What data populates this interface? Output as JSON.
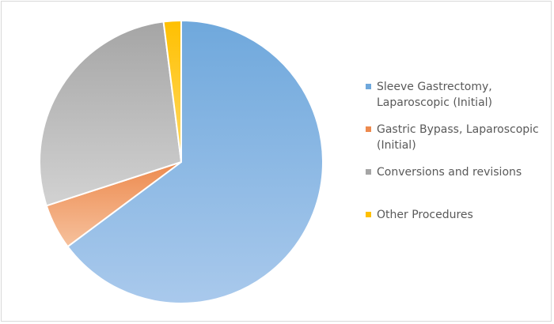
{
  "chart_data": {
    "type": "pie",
    "title": "",
    "legend_position": "right",
    "start_angle_deg": 0,
    "direction": "clockwise",
    "slices": [
      {
        "label": "Sleeve Gastrectomy, Laparoscopic (Initial)",
        "value": 64.8,
        "color": "#6fa8dc",
        "color_light": "#a9c9ec"
      },
      {
        "label": "Gastric Bypass, Laparoscopic (Initial)",
        "value": 5.2,
        "color": "#ed8a4e",
        "color_light": "#f6c19d"
      },
      {
        "label": "Conversions and revisions",
        "value": 28.0,
        "color": "#a5a5a5",
        "color_light": "#d2d2d2"
      },
      {
        "label": "Other Procedures",
        "value": 2.0,
        "color": "#ffc000",
        "color_light": "#ffd966"
      }
    ],
    "legend_lines": [
      [
        "Sleeve Gastrectomy,",
        "Laparoscopic (Initial)"
      ],
      [
        "Gastric Bypass, Laparoscopic",
        "(Initial)"
      ],
      [
        "Conversions and revisions"
      ],
      [
        "Other Procedures"
      ]
    ]
  }
}
